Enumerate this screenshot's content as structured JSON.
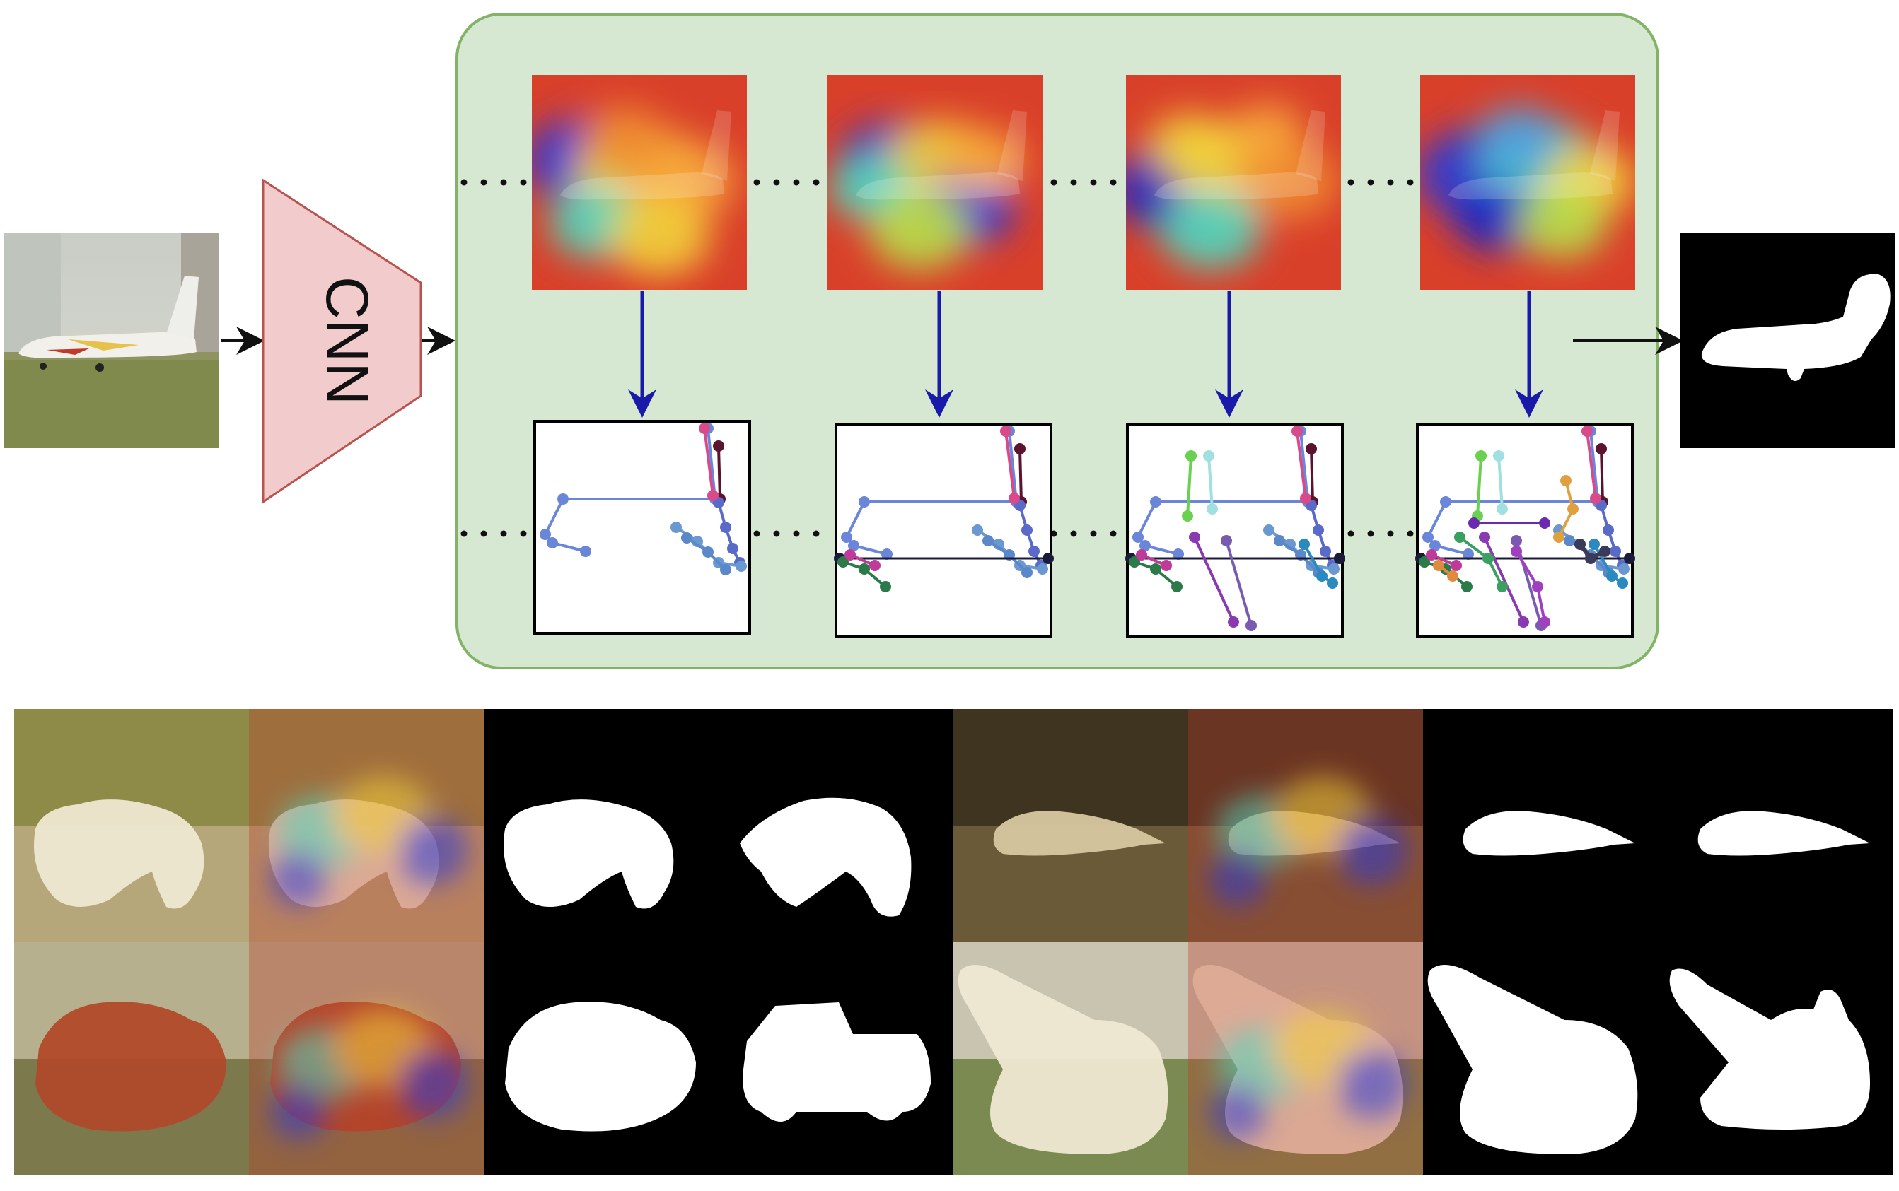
{
  "diagram": {
    "cnn_label": "CNN",
    "colors": {
      "panel_fill": "#d7e8d2",
      "panel_stroke": "#82b366",
      "cnn_fill": "#f2cccc",
      "cnn_stroke": "#b85450",
      "down_arrow": "#1a1aaa",
      "arrow": "#111111"
    },
    "input_image": "airplane-photo",
    "output_mask": "airplane-mask",
    "stages": [
      {
        "name": "stage-1",
        "heatmap": "attention-heatmap",
        "graph": "keypoint-graph"
      },
      {
        "name": "stage-2",
        "heatmap": "attention-heatmap",
        "graph": "keypoint-graph"
      },
      {
        "name": "stage-3",
        "heatmap": "attention-heatmap",
        "graph": "keypoint-graph"
      },
      {
        "name": "stage-4",
        "heatmap": "attention-heatmap",
        "graph": "keypoint-graph"
      }
    ],
    "examples": [
      {
        "subject": "polar-bear",
        "columns": [
          "photo",
          "heatmap-overlay",
          "predicted-mask",
          "ground-truth-mask"
        ]
      },
      {
        "subject": "hammerhead-shark",
        "columns": [
          "photo",
          "heatmap-overlay",
          "predicted-mask",
          "ground-truth-mask"
        ]
      },
      {
        "subject": "pickup-truck",
        "columns": [
          "photo",
          "heatmap-overlay",
          "predicted-mask",
          "ground-truth-mask"
        ]
      },
      {
        "subject": "tank",
        "columns": [
          "photo",
          "heatmap-overlay",
          "predicted-mask",
          "ground-truth-mask"
        ]
      }
    ]
  }
}
